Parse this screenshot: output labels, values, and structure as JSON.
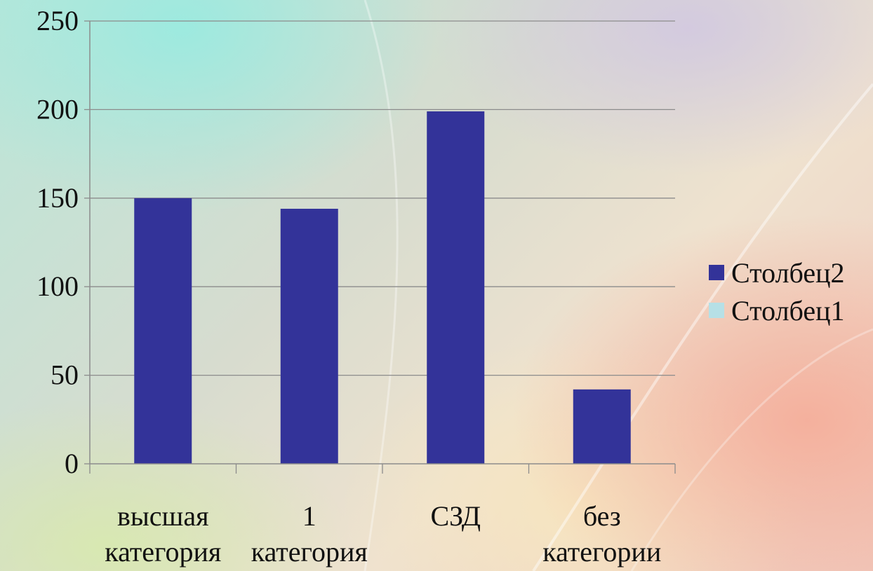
{
  "chart_data": {
    "type": "bar",
    "categories": [
      [
        "высшая",
        "категория"
      ],
      [
        "1",
        "категория"
      ],
      [
        "СЗД"
      ],
      [
        "без",
        "категории"
      ]
    ],
    "series": [
      {
        "name": "Столбец2",
        "color": "#333399",
        "values": [
          150,
          144,
          199,
          42
        ]
      },
      {
        "name": "Столбец1",
        "color": "#b6e0e6",
        "values": [
          0,
          0,
          0,
          0
        ]
      }
    ],
    "y_ticks": [
      "0",
      "50",
      "100",
      "150",
      "200",
      "250"
    ],
    "ylim": [
      0,
      250
    ],
    "grid": true,
    "legend_position": "right"
  }
}
